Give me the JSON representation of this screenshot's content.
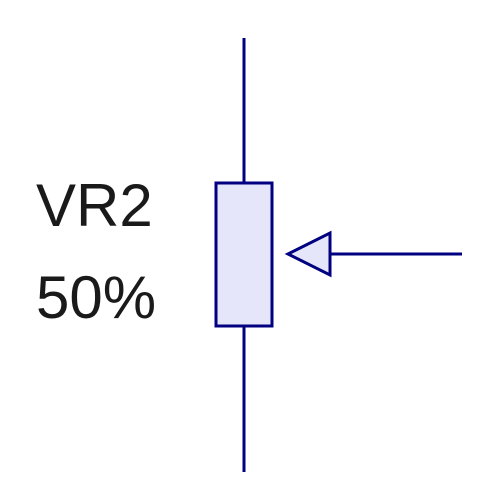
{
  "component": {
    "designator": "VR2",
    "wiper_position_text": "50%",
    "wiper_position_fraction": 0.5,
    "type": "potentiometer"
  },
  "colors": {
    "wire": "#000080",
    "body_fill": "#e6e6fa",
    "body_stroke": "#000080",
    "arrow_fill": "#e6e6fa",
    "text": "#1a1a1a",
    "background": "#ffffff"
  },
  "icons": {
    "resistor_body": "resistor-body-icon",
    "wiper_arrow": "wiper-arrow-icon"
  }
}
